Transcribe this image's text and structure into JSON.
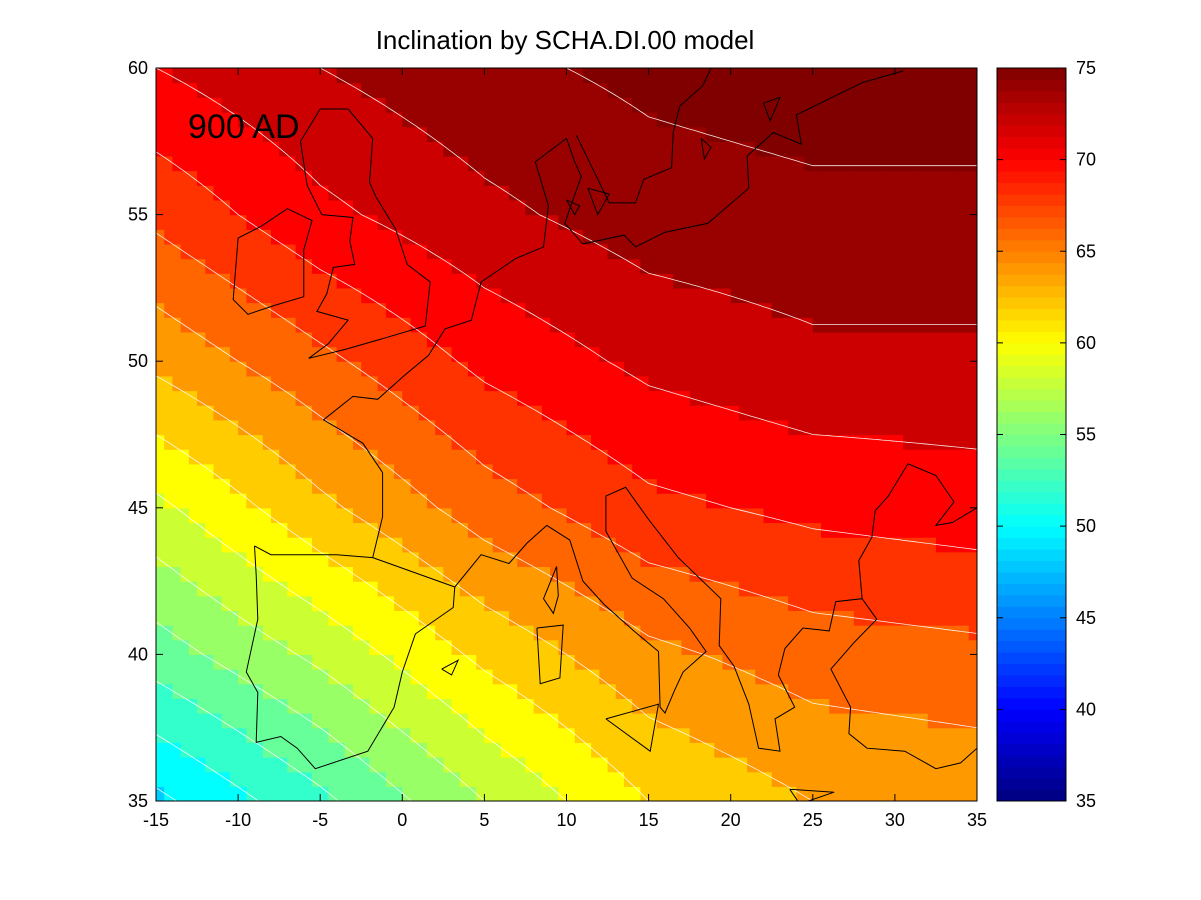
{
  "chart_data": {
    "type": "heatmap",
    "subtype": "filled-contour-map",
    "title": "Inclination by SCHA.DI.00 model",
    "annotation": "900 AD",
    "xlabel": "",
    "ylabel": "",
    "xlim": [
      -15,
      35
    ],
    "ylim": [
      35,
      60
    ],
    "x_ticks": [
      -15,
      -10,
      -5,
      0,
      5,
      10,
      15,
      20,
      25,
      30,
      35
    ],
    "y_ticks": [
      35,
      40,
      45,
      50,
      55,
      60
    ],
    "grid": false,
    "colormap": "jet",
    "colorbar": {
      "position": "right",
      "range": [
        35,
        75
      ],
      "ticks": [
        35,
        40,
        45,
        50,
        55,
        60,
        65,
        70,
        75
      ]
    },
    "contour_interval": 2,
    "contour_line_color": "#ffffff",
    "coastline_color": "#000000",
    "field_samples": {
      "description_units": "inclination (degrees)",
      "lon": [
        -15,
        -5,
        5,
        15,
        25,
        35
      ],
      "lat": [
        35,
        40,
        45,
        50,
        55,
        60
      ],
      "values": [
        [
          48.5,
          52.5,
          57.0,
          61.0,
          63.0,
          63.5
        ],
        [
          54.0,
          57.5,
          61.5,
          64.5,
          66.0,
          66.5
        ],
        [
          58.5,
          62.5,
          66.0,
          68.5,
          69.5,
          70.0
        ],
        [
          63.5,
          66.5,
          69.5,
          71.5,
          72.5,
          72.5
        ],
        [
          67.5,
          70.5,
          72.5,
          74.0,
          74.5,
          74.5
        ],
        [
          71.0,
          73.0,
          74.5,
          75.5,
          76.0,
          76.0
        ]
      ]
    }
  }
}
